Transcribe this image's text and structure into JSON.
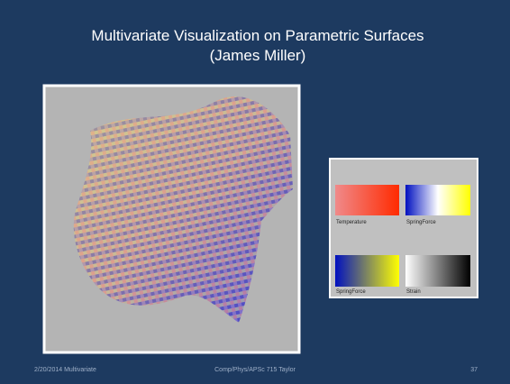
{
  "title": {
    "line1": "Multivariate Visualization on Parametric Surfaces",
    "line2": "(James Miller)"
  },
  "legend": [
    {
      "label": "Temperature"
    },
    {
      "label": "SpringForce"
    },
    {
      "label": "SpringForce"
    },
    {
      "label": "Strain"
    }
  ],
  "footer": {
    "left": "2/20/2014 Multivariate",
    "center": "Comp/Phys/APSc 715 Taylor",
    "right": "37"
  }
}
